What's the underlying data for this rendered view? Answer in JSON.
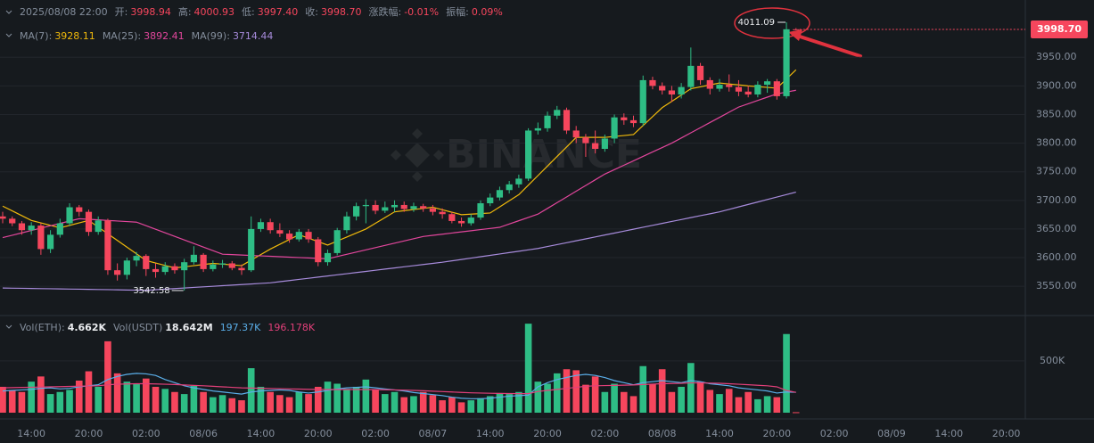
{
  "chart_data": {
    "type": "candlestick",
    "header": {
      "date": "2025/08/08 22:00",
      "items": [
        {
          "label": "开:",
          "value": "3998.94"
        },
        {
          "label": "高:",
          "value": "4000.93"
        },
        {
          "label": "低:",
          "value": "3997.40"
        },
        {
          "label": "收:",
          "value": "3998.70"
        },
        {
          "label": "涨跌幅:",
          "value": "-0.01%"
        },
        {
          "label": "振幅:",
          "value": "0.09%"
        }
      ]
    },
    "watermark": "BINANCE",
    "last_price_label": "3998.70",
    "high_label": "4011.09",
    "low_label": "3542.58",
    "up_color": "#2ebd85",
    "down_color": "#f6465d",
    "categories": [
      null,
      null,
      null,
      "14:00",
      null,
      null,
      null,
      null,
      null,
      "20:00",
      null,
      null,
      null,
      null,
      null,
      "02:00",
      null,
      null,
      null,
      null,
      null,
      "08/06",
      null,
      null,
      null,
      null,
      null,
      "14:00",
      null,
      null,
      null,
      null,
      null,
      "20:00",
      null,
      null,
      null,
      null,
      null,
      "02:00",
      null,
      null,
      null,
      null,
      null,
      "08/07",
      null,
      null,
      null,
      null,
      null,
      "14:00",
      null,
      null,
      null,
      null,
      null,
      "20:00",
      null,
      null,
      null,
      null,
      null,
      "02:00",
      null,
      null,
      null,
      null,
      null,
      "08/08",
      null,
      null,
      null,
      null,
      null,
      "14:00",
      null,
      null,
      null,
      null,
      null,
      "20:00",
      null,
      null,
      null,
      null,
      null,
      "02:00",
      null,
      null,
      null,
      null,
      null,
      "08/09",
      null,
      null,
      null,
      null,
      null,
      "14:00",
      null,
      null,
      null,
      null,
      null,
      "20:00",
      null
    ],
    "open": [
      3672,
      3668,
      3660,
      3648,
      3656,
      3615,
      3640,
      3660,
      3688,
      3680,
      3645,
      3665,
      3578,
      3570,
      3595,
      3603,
      3580,
      3575,
      3585,
      3578,
      3592,
      3605,
      3580,
      3588,
      3590,
      3582,
      3578,
      3650,
      3662,
      3648,
      3642,
      3632,
      3645,
      3632,
      3592,
      3608,
      3648,
      3672,
      3690,
      3692,
      3682,
      3688,
      3692,
      3685,
      3690,
      3686,
      3680,
      3676,
      3664,
      3660,
      3670,
      3695,
      3705,
      3718,
      3728,
      3738,
      3822,
      3826,
      3848,
      3858,
      3822,
      3810,
      3800,
      3790,
      3808,
      3845,
      3840,
      3835,
      3910,
      3900,
      3892,
      3885,
      3898,
      3935,
      3910,
      3895,
      3902,
      3898,
      3890,
      3885,
      3902,
      3908,
      3882,
      3998.94,
      null,
      null,
      null,
      null,
      null,
      null,
      null,
      null,
      null,
      null,
      null,
      null,
      null,
      null,
      null,
      null,
      null,
      null,
      null,
      null,
      null,
      null,
      null
    ],
    "high": [
      3680,
      3672,
      3664,
      3662,
      3660,
      3648,
      3668,
      3695,
      3692,
      3684,
      3672,
      3668,
      3590,
      3600,
      3610,
      3606,
      3590,
      3592,
      3590,
      3598,
      3620,
      3608,
      3595,
      3596,
      3594,
      3588,
      3672,
      3668,
      3668,
      3660,
      3648,
      3650,
      3650,
      3636,
      3614,
      3652,
      3680,
      3696,
      3702,
      3700,
      3698,
      3700,
      3698,
      3696,
      3694,
      3692,
      3686,
      3680,
      3670,
      3676,
      3700,
      3712,
      3724,
      3734,
      3745,
      3826,
      3836,
      3855,
      3865,
      3862,
      3830,
      3816,
      3822,
      3815,
      3850,
      3852,
      3848,
      3918,
      3916,
      3906,
      3900,
      3905,
      3967,
      3940,
      3915,
      3912,
      3920,
      3910,
      3900,
      3908,
      3912,
      3912,
      4011.09,
      4000.93,
      null,
      null,
      null,
      null,
      null,
      null,
      null,
      null,
      null,
      null,
      null,
      null,
      null,
      null,
      null,
      null,
      null,
      null,
      null,
      null,
      null,
      null,
      null
    ],
    "low": [
      3660,
      3655,
      3640,
      3640,
      3605,
      3608,
      3635,
      3655,
      3672,
      3638,
      3640,
      3570,
      3560,
      3562,
      3585,
      3568,
      3565,
      3570,
      3572,
      3542.58,
      3588,
      3575,
      3576,
      3582,
      3578,
      3570,
      3575,
      3645,
      3642,
      3636,
      3626,
      3628,
      3626,
      3585,
      3586,
      3604,
      3642,
      3665,
      3660,
      3676,
      3678,
      3680,
      3680,
      3680,
      3680,
      3674,
      3668,
      3660,
      3654,
      3656,
      3666,
      3690,
      3700,
      3712,
      3722,
      3734,
      3815,
      3820,
      3842,
      3816,
      3800,
      3776,
      3782,
      3785,
      3800,
      3832,
      3828,
      3830,
      3894,
      3885,
      3872,
      3878,
      3892,
      3902,
      3885,
      3890,
      3890,
      3882,
      3880,
      3880,
      3888,
      3876,
      3878,
      3997.4,
      null,
      null,
      null,
      null,
      null,
      null,
      null,
      null,
      null,
      null,
      null,
      null,
      null,
      null,
      null,
      null,
      null,
      null,
      null,
      null,
      null,
      null,
      null
    ],
    "close": [
      3668,
      3660,
      3648,
      3656,
      3615,
      3640,
      3660,
      3688,
      3680,
      3645,
      3665,
      3578,
      3570,
      3595,
      3603,
      3580,
      3575,
      3585,
      3578,
      3592,
      3605,
      3580,
      3588,
      3590,
      3582,
      3578,
      3650,
      3662,
      3648,
      3642,
      3632,
      3645,
      3632,
      3592,
      3608,
      3648,
      3672,
      3690,
      3692,
      3682,
      3688,
      3692,
      3685,
      3690,
      3686,
      3680,
      3676,
      3664,
      3660,
      3670,
      3695,
      3705,
      3718,
      3728,
      3738,
      3822,
      3826,
      3848,
      3858,
      3822,
      3810,
      3800,
      3790,
      3808,
      3845,
      3840,
      3835,
      3910,
      3900,
      3892,
      3885,
      3898,
      3935,
      3910,
      3895,
      3902,
      3898,
      3890,
      3885,
      3902,
      3908,
      3882,
      3998.9,
      3998.7,
      null,
      null,
      null,
      null,
      null,
      null,
      null,
      null,
      null,
      null,
      null,
      null,
      null,
      null,
      null,
      null,
      null,
      null,
      null,
      null,
      null,
      null,
      null
    ],
    "ma": [
      {
        "name": "MA(7):",
        "label": "3928.11",
        "color": "#f0b90b",
        "values": [
          3690,
          3681.7,
          3673.3,
          3665,
          3660.7,
          3656.3,
          3652,
          3656.3,
          3660.7,
          3665,
          3653.3,
          3641.7,
          3630,
          3618.3,
          3606.7,
          3595,
          3590.7,
          3586.3,
          3582,
          3584,
          3586,
          3588,
          3590,
          3588.7,
          3587.3,
          3586,
          3595.7,
          3605.3,
          3615,
          3623.3,
          3631.7,
          3640,
          3634,
          3628,
          3622,
          3629,
          3636,
          3643,
          3650,
          3660,
          3670,
          3680,
          3682,
          3684,
          3686,
          3688,
          3683.7,
          3679.3,
          3675,
          3676,
          3677,
          3678,
          3688.7,
          3699.3,
          3710,
          3726.7,
          3743.3,
          3760,
          3776.7,
          3793.3,
          3810,
          3810,
          3810,
          3810,
          3811.7,
          3813.3,
          3815,
          3830.7,
          3846.3,
          3862,
          3873,
          3884,
          3895,
          3898.3,
          3901.7,
          3905,
          3903.3,
          3901.7,
          3900,
          3898.7,
          3897.3,
          3896,
          3912,
          3928.11,
          null,
          null,
          null,
          null,
          null,
          null,
          null,
          null,
          null,
          null,
          null,
          null,
          null,
          null,
          null,
          null,
          null,
          null,
          null,
          null,
          null,
          null,
          null
        ]
      },
      {
        "name": "MA(25):",
        "label": "3892.41",
        "color": "#e2469c",
        "values": [
          3635,
          3639.1,
          3643.3,
          3647.4,
          3651.5,
          3655.6,
          3659.8,
          3663.9,
          3668,
          3667,
          3666,
          3665,
          3664,
          3663,
          3662,
          3655.8,
          3649.6,
          3643.3,
          3637.1,
          3630.9,
          3624.7,
          3618.4,
          3612.2,
          3606,
          3605.3,
          3604.5,
          3603.8,
          3603.1,
          3602.4,
          3601.6,
          3600.9,
          3600.2,
          3599.5,
          3598.7,
          3598,
          3601.9,
          3605.8,
          3609.7,
          3613.6,
          3617.5,
          3621.4,
          3625.3,
          3629.2,
          3633.1,
          3637,
          3639,
          3641,
          3643,
          3645,
          3647,
          3649,
          3651,
          3653,
          3658.8,
          3664.5,
          3670.3,
          3676,
          3686,
          3696,
          3706,
          3716,
          3726,
          3736,
          3746,
          3753.7,
          3761.4,
          3769.1,
          3776.9,
          3784.6,
          3792.3,
          3800,
          3809,
          3818,
          3827,
          3836,
          3845,
          3854,
          3863,
          3868.8,
          3874.5,
          3880.3,
          3886,
          3889.2,
          3892.41,
          null,
          null,
          null,
          null,
          null,
          null,
          null,
          null,
          null,
          null,
          null,
          null,
          null,
          null,
          null,
          null,
          null,
          null,
          null,
          null,
          null,
          null,
          null
        ]
      },
      {
        "name": "MA(99):",
        "label": "3714.44",
        "color": "#a78bdb",
        "values": [
          3547,
          3546.7,
          3546.5,
          3546.2,
          3545.9,
          3545.7,
          3545.4,
          3545.1,
          3544.9,
          3544.6,
          3544.3,
          3544.1,
          3543.8,
          3543.5,
          3543.3,
          3543,
          3544,
          3545,
          3546,
          3547,
          3548,
          3549,
          3550,
          3551,
          3552,
          3553,
          3554,
          3555,
          3556,
          3558,
          3560,
          3562,
          3564,
          3566,
          3568,
          3570,
          3572,
          3574,
          3576,
          3578,
          3580,
          3582,
          3584,
          3586,
          3588,
          3590,
          3592,
          3594.4,
          3596.8,
          3599.2,
          3601.6,
          3604,
          3606.4,
          3608.8,
          3611.2,
          3613.6,
          3616,
          3619.4,
          3622.7,
          3626.1,
          3629.5,
          3632.8,
          3636.2,
          3639.6,
          3642.9,
          3646.3,
          3649.7,
          3653.1,
          3656.4,
          3659.8,
          3663.2,
          3666.5,
          3669.9,
          3673.3,
          3676.6,
          3680,
          3684.3,
          3688.6,
          3692.9,
          3697.2,
          3701.5,
          3705.8,
          3710.1,
          3714.44,
          null,
          null,
          null,
          null,
          null,
          null,
          null,
          null,
          null,
          null,
          null,
          null,
          null,
          null,
          null,
          null,
          null,
          null,
          null,
          null,
          null,
          null,
          null
        ]
      }
    ],
    "ylim": [
      3502,
      4050
    ],
    "yticks": [
      {
        "value": 3550,
        "label": "3550.00"
      },
      {
        "value": 3600,
        "label": "3600.00"
      },
      {
        "value": 3650,
        "label": "3650.00"
      },
      {
        "value": 3700,
        "label": "3700.00"
      },
      {
        "value": 3750,
        "label": "3750.00"
      },
      {
        "value": 3800,
        "label": "3800.00"
      },
      {
        "value": 3850,
        "label": "3850.00"
      },
      {
        "value": 3900,
        "label": "3900.00"
      },
      {
        "value": 3950,
        "label": "3950.00"
      }
    ],
    "volume_header": [
      {
        "label": "Vol(ETH):",
        "value": "4.662K"
      },
      {
        "label": "Vol(USDT)",
        "value": "18.642M"
      }
    ],
    "volume": [
      250000,
      220000,
      200000,
      300000,
      350000,
      180000,
      200000,
      220000,
      310000,
      400000,
      250000,
      690000,
      380000,
      300000,
      280000,
      330000,
      250000,
      230000,
      200000,
      180000,
      260000,
      200000,
      150000,
      170000,
      140000,
      120000,
      430000,
      250000,
      200000,
      170000,
      150000,
      200000,
      180000,
      250000,
      300000,
      280000,
      230000,
      250000,
      320000,
      220000,
      180000,
      200000,
      150000,
      160000,
      200000,
      170000,
      120000,
      150000,
      100000,
      120000,
      140000,
      160000,
      190000,
      180000,
      200000,
      860000,
      300000,
      280000,
      380000,
      420000,
      410000,
      270000,
      350000,
      200000,
      280000,
      200000,
      160000,
      450000,
      280000,
      420000,
      200000,
      250000,
      480000,
      300000,
      220000,
      180000,
      230000,
      150000,
      200000,
      130000,
      160000,
      150000,
      760000,
      4662,
      null,
      null,
      null,
      null,
      null,
      null,
      null,
      null,
      null,
      null,
      null,
      null,
      null,
      null,
      null,
      null,
      null,
      null,
      null,
      null,
      null,
      null,
      null
    ],
    "volume_ma": [
      {
        "label": "197.37K",
        "color": "#5aaee8",
        "values": [
          210000,
          215000,
          220000,
          225000,
          235000,
          240000,
          230000,
          235000,
          250000,
          260000,
          270000,
          320000,
          350000,
          370000,
          380000,
          375000,
          360000,
          320000,
          290000,
          260000,
          240000,
          225000,
          210000,
          200000,
          190000,
          180000,
          200000,
          210000,
          215000,
          220000,
          215000,
          200000,
          190000,
          200000,
          215000,
          230000,
          240000,
          245000,
          250000,
          240000,
          230000,
          220000,
          210000,
          195000,
          185000,
          175000,
          165000,
          150000,
          140000,
          135000,
          135000,
          140000,
          150000,
          160000,
          165000,
          170000,
          250000,
          290000,
          320000,
          340000,
          360000,
          370000,
          360000,
          340000,
          310000,
          290000,
          270000,
          290000,
          300000,
          310000,
          300000,
          290000,
          310000,
          300000,
          280000,
          270000,
          260000,
          240000,
          230000,
          220000,
          210000,
          190000,
          200000,
          197370,
          null,
          null,
          null,
          null,
          null,
          null,
          null,
          null,
          null,
          null,
          null,
          null,
          null,
          null,
          null,
          null,
          null,
          null,
          null,
          null,
          null,
          null,
          null
        ]
      },
      {
        "label": "196.178K",
        "color": "#e2407a",
        "values": [
          240000,
          242000,
          244000,
          246000,
          248000,
          250000,
          252000,
          254000,
          256000,
          258000,
          260000,
          270000,
          275000,
          278000,
          280000,
          280000,
          278000,
          275000,
          272000,
          268000,
          264000,
          260000,
          255000,
          250000,
          245000,
          240000,
          238000,
          236000,
          234000,
          232000,
          230000,
          228000,
          226000,
          225000,
          224000,
          224000,
          224000,
          224000,
          224000,
          223000,
          222000,
          220000,
          218000,
          215000,
          212000,
          208000,
          204000,
          200000,
          196000,
          192000,
          190000,
          188000,
          186000,
          185000,
          184000,
          184000,
          205000,
          215000,
          225000,
          235000,
          245000,
          255000,
          260000,
          262000,
          264000,
          266000,
          268000,
          272000,
          276000,
          280000,
          282000,
          284000,
          288000,
          288000,
          286000,
          284000,
          280000,
          275000,
          270000,
          265000,
          260000,
          250000,
          215000,
          196178,
          null,
          null,
          null,
          null,
          null,
          null,
          null,
          null,
          null,
          null,
          null,
          null,
          null,
          null,
          null,
          null,
          null,
          null,
          null,
          null,
          null,
          null,
          null
        ]
      }
    ],
    "vol_ylim": [
      0,
      930000
    ],
    "vol_yticks": [
      {
        "value": 500000,
        "label": "500K"
      }
    ],
    "grid": true
  }
}
